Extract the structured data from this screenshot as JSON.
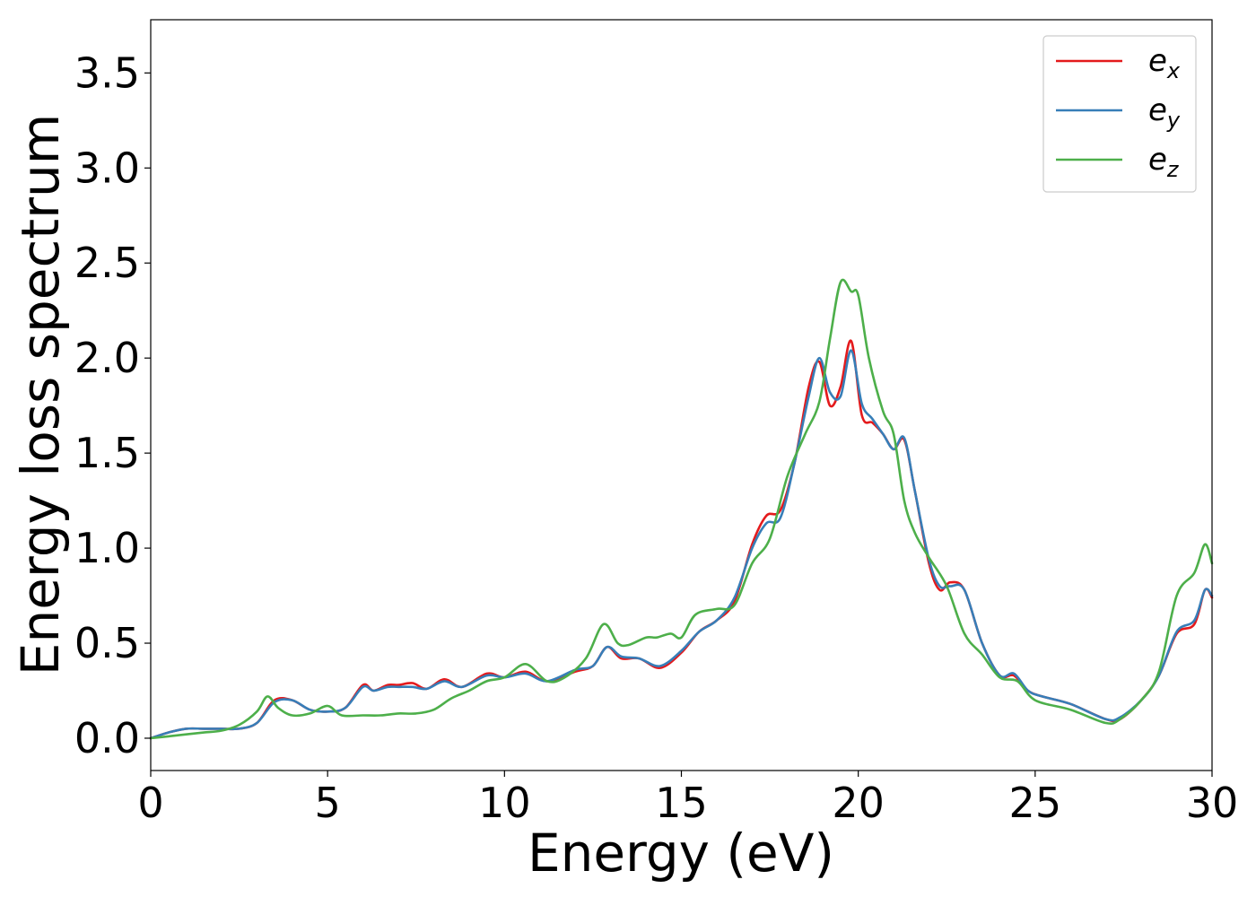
{
  "chart_data": {
    "type": "line",
    "xlabel": "Energy (eV)",
    "ylabel": "Energy loss spectrum",
    "xlim": [
      0,
      30
    ],
    "ylim": [
      -0.17,
      3.78
    ],
    "xticks": [
      0,
      5,
      10,
      15,
      20,
      25,
      30
    ],
    "xtick_labels": [
      "0",
      "5",
      "10",
      "15",
      "20",
      "25",
      "30"
    ],
    "yticks": [
      0.0,
      0.5,
      1.0,
      1.5,
      2.0,
      2.5,
      3.0,
      3.5
    ],
    "ytick_labels": [
      "0.0",
      "0.5",
      "1.0",
      "1.5",
      "2.0",
      "2.5",
      "3.0",
      "3.5"
    ],
    "grid": false,
    "legend_position": "top-right",
    "series": [
      {
        "name": "e",
        "subscript": "x",
        "color": "#e41a1c",
        "x": [
          0,
          0.5,
          1.0,
          1.5,
          2.0,
          2.5,
          3.0,
          3.5,
          4.0,
          4.5,
          5.0,
          5.5,
          6.0,
          6.3,
          6.7,
          7.0,
          7.4,
          7.8,
          8.3,
          8.8,
          9.5,
          10.0,
          10.6,
          11.2,
          12.0,
          12.5,
          12.9,
          13.3,
          13.8,
          14.4,
          15.0,
          15.5,
          16.0,
          16.5,
          17.0,
          17.4,
          17.8,
          18.2,
          18.6,
          18.9,
          19.2,
          19.5,
          19.8,
          20.1,
          20.4,
          20.7,
          21.0,
          21.3,
          21.6,
          22.0,
          22.3,
          22.6,
          23.0,
          23.5,
          24.0,
          24.4,
          24.8,
          25.2,
          26.0,
          27.0,
          27.4,
          28.0,
          28.5,
          29.0,
          29.5,
          29.8,
          30.0
        ],
        "y": [
          0.0,
          0.03,
          0.05,
          0.05,
          0.05,
          0.05,
          0.08,
          0.2,
          0.2,
          0.15,
          0.14,
          0.16,
          0.28,
          0.25,
          0.28,
          0.28,
          0.29,
          0.26,
          0.31,
          0.27,
          0.34,
          0.32,
          0.35,
          0.3,
          0.35,
          0.38,
          0.48,
          0.42,
          0.42,
          0.37,
          0.45,
          0.56,
          0.62,
          0.72,
          1.02,
          1.17,
          1.2,
          1.45,
          1.85,
          1.98,
          1.75,
          1.85,
          2.09,
          1.7,
          1.66,
          1.6,
          1.52,
          1.57,
          1.3,
          0.92,
          0.78,
          0.82,
          0.78,
          0.5,
          0.33,
          0.33,
          0.25,
          0.22,
          0.18,
          0.1,
          0.1,
          0.2,
          0.33,
          0.55,
          0.6,
          0.78,
          0.74
        ]
      },
      {
        "name": "e",
        "subscript": "y",
        "color": "#377eb8",
        "x": [
          0,
          0.5,
          1.0,
          1.5,
          2.0,
          2.5,
          3.0,
          3.5,
          4.0,
          4.5,
          5.0,
          5.5,
          6.0,
          6.3,
          6.7,
          7.0,
          7.4,
          7.8,
          8.3,
          8.8,
          9.5,
          10.0,
          10.6,
          11.2,
          12.0,
          12.5,
          12.9,
          13.3,
          13.8,
          14.4,
          15.0,
          15.5,
          16.0,
          16.5,
          17.0,
          17.4,
          17.8,
          18.2,
          18.6,
          18.9,
          19.2,
          19.5,
          19.8,
          20.1,
          20.4,
          20.7,
          21.0,
          21.3,
          21.6,
          22.0,
          22.3,
          22.6,
          23.0,
          23.5,
          24.0,
          24.4,
          24.8,
          25.2,
          26.0,
          27.0,
          27.4,
          28.0,
          28.5,
          29.0,
          29.5,
          29.8,
          30.0
        ],
        "y": [
          0.0,
          0.03,
          0.05,
          0.05,
          0.05,
          0.05,
          0.08,
          0.19,
          0.2,
          0.15,
          0.14,
          0.16,
          0.27,
          0.25,
          0.27,
          0.27,
          0.27,
          0.26,
          0.3,
          0.27,
          0.33,
          0.32,
          0.34,
          0.3,
          0.36,
          0.38,
          0.48,
          0.43,
          0.42,
          0.38,
          0.46,
          0.56,
          0.62,
          0.74,
          1.0,
          1.13,
          1.16,
          1.45,
          1.8,
          2.0,
          1.82,
          1.8,
          2.04,
          1.76,
          1.68,
          1.6,
          1.52,
          1.58,
          1.3,
          0.94,
          0.8,
          0.8,
          0.78,
          0.5,
          0.33,
          0.34,
          0.25,
          0.22,
          0.18,
          0.1,
          0.11,
          0.2,
          0.33,
          0.56,
          0.62,
          0.78,
          0.75
        ]
      },
      {
        "name": "e",
        "subscript": "z",
        "color": "#4daf4a",
        "x": [
          0,
          0.5,
          1.0,
          1.5,
          2.0,
          2.5,
          3.0,
          3.3,
          3.6,
          4.0,
          4.5,
          5.0,
          5.4,
          6.0,
          6.5,
          7.0,
          7.5,
          8.0,
          8.5,
          9.0,
          9.5,
          10.0,
          10.6,
          11.2,
          11.7,
          12.3,
          12.8,
          13.2,
          13.5,
          14.0,
          14.3,
          14.7,
          15.0,
          15.4,
          16.0,
          16.5,
          17.0,
          17.5,
          18.0,
          18.5,
          18.9,
          19.2,
          19.5,
          19.8,
          20.0,
          20.3,
          20.7,
          21.0,
          21.3,
          21.6,
          22.0,
          22.5,
          23.0,
          23.5,
          24.0,
          24.5,
          25.0,
          26.0,
          27.0,
          27.4,
          28.0,
          28.5,
          29.0,
          29.5,
          29.8,
          30.0
        ],
        "y": [
          0.0,
          0.01,
          0.02,
          0.03,
          0.04,
          0.07,
          0.14,
          0.22,
          0.16,
          0.12,
          0.13,
          0.17,
          0.12,
          0.12,
          0.12,
          0.13,
          0.13,
          0.15,
          0.21,
          0.25,
          0.3,
          0.32,
          0.39,
          0.3,
          0.32,
          0.42,
          0.6,
          0.5,
          0.49,
          0.53,
          0.53,
          0.55,
          0.53,
          0.65,
          0.68,
          0.7,
          0.92,
          1.05,
          1.38,
          1.6,
          1.77,
          2.1,
          2.4,
          2.35,
          2.33,
          2.0,
          1.72,
          1.6,
          1.25,
          1.08,
          0.95,
          0.8,
          0.55,
          0.44,
          0.32,
          0.3,
          0.2,
          0.15,
          0.08,
          0.1,
          0.2,
          0.35,
          0.75,
          0.87,
          1.02,
          0.92
        ]
      }
    ]
  }
}
